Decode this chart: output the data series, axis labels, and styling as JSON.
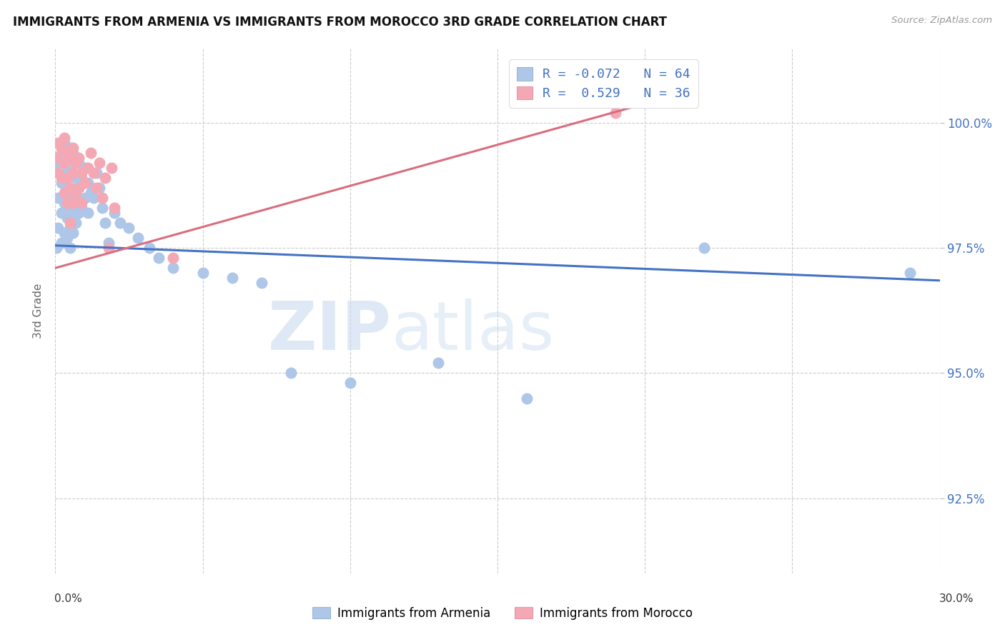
{
  "title": "IMMIGRANTS FROM ARMENIA VS IMMIGRANTS FROM MOROCCO 3RD GRADE CORRELATION CHART",
  "source": "Source: ZipAtlas.com",
  "ylabel": "3rd Grade",
  "yticks": [
    92.5,
    95.0,
    97.5,
    100.0
  ],
  "ytick_labels": [
    "92.5%",
    "95.0%",
    "97.5%",
    "100.0%"
  ],
  "xlim": [
    0.0,
    0.3
  ],
  "ylim": [
    91.0,
    101.5
  ],
  "armenia_R": -0.072,
  "armenia_N": 64,
  "morocco_R": 0.529,
  "morocco_N": 36,
  "armenia_color": "#aec6e8",
  "morocco_color": "#f4a8b4",
  "armenia_line_color": "#4472c4",
  "morocco_line_color": "#d96d7e",
  "legend_armenia": "Immigrants from Armenia",
  "legend_morocco": "Immigrants from Morocco",
  "watermark_zip": "ZIP",
  "watermark_atlas": "atlas",
  "armenia_line_x0": 0.0,
  "armenia_line_x1": 0.3,
  "armenia_line_y0": 97.55,
  "armenia_line_y1": 96.85,
  "morocco_line_x0": 0.0,
  "morocco_line_x1": 0.195,
  "morocco_line_y0": 97.1,
  "morocco_line_y1": 100.3,
  "armenia_x": [
    0.0005,
    0.001,
    0.001,
    0.001,
    0.002,
    0.002,
    0.002,
    0.002,
    0.003,
    0.003,
    0.003,
    0.003,
    0.004,
    0.004,
    0.004,
    0.004,
    0.004,
    0.005,
    0.005,
    0.005,
    0.005,
    0.005,
    0.005,
    0.006,
    0.006,
    0.006,
    0.006,
    0.006,
    0.007,
    0.007,
    0.007,
    0.007,
    0.008,
    0.008,
    0.008,
    0.009,
    0.009,
    0.01,
    0.01,
    0.011,
    0.011,
    0.012,
    0.013,
    0.014,
    0.015,
    0.016,
    0.017,
    0.018,
    0.02,
    0.022,
    0.025,
    0.028,
    0.032,
    0.035,
    0.04,
    0.05,
    0.06,
    0.07,
    0.08,
    0.1,
    0.13,
    0.16,
    0.22,
    0.29
  ],
  "armenia_y": [
    97.5,
    99.2,
    98.5,
    97.9,
    99.4,
    98.8,
    98.2,
    97.6,
    99.6,
    99.0,
    98.4,
    97.8,
    99.3,
    98.9,
    98.5,
    98.1,
    97.7,
    99.5,
    99.1,
    98.7,
    98.3,
    97.9,
    97.5,
    99.4,
    99.0,
    98.6,
    98.2,
    97.8,
    99.3,
    98.9,
    98.5,
    98.0,
    99.2,
    98.7,
    98.2,
    98.9,
    98.3,
    99.1,
    98.5,
    98.8,
    98.2,
    98.6,
    98.5,
    99.0,
    98.7,
    98.3,
    98.0,
    97.6,
    98.2,
    98.0,
    97.9,
    97.7,
    97.5,
    97.3,
    97.1,
    97.0,
    96.9,
    96.8,
    95.0,
    94.8,
    95.2,
    94.5,
    97.5,
    97.0
  ],
  "morocco_x": [
    0.0005,
    0.001,
    0.001,
    0.002,
    0.002,
    0.003,
    0.003,
    0.003,
    0.004,
    0.004,
    0.004,
    0.005,
    0.005,
    0.005,
    0.006,
    0.006,
    0.006,
    0.007,
    0.007,
    0.008,
    0.008,
    0.009,
    0.009,
    0.01,
    0.011,
    0.012,
    0.013,
    0.014,
    0.015,
    0.016,
    0.017,
    0.018,
    0.019,
    0.02,
    0.04,
    0.19
  ],
  "morocco_y": [
    99.3,
    99.6,
    99.0,
    99.5,
    98.9,
    99.7,
    99.2,
    98.6,
    99.4,
    98.9,
    98.4,
    99.3,
    98.7,
    98.0,
    99.5,
    99.0,
    98.4,
    99.2,
    98.6,
    99.3,
    98.7,
    99.0,
    98.4,
    98.8,
    99.1,
    99.4,
    99.0,
    98.7,
    99.2,
    98.5,
    98.9,
    97.5,
    99.1,
    98.3,
    97.3,
    100.2
  ]
}
